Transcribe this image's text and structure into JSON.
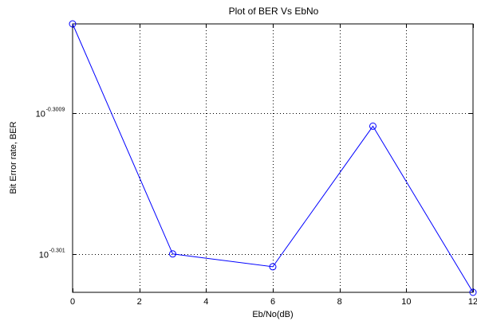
{
  "chart_data": {
    "type": "line",
    "title": "Plot of BER Vs EbNo",
    "xlabel": "Eb/No(dB)",
    "ylabel": "Bit Error rate, BER",
    "x": [
      0,
      3,
      6,
      9,
      12
    ],
    "series": [
      {
        "values": [
          0.50025,
          0.50007,
          0.50006,
          0.50017,
          0.50004
        ],
        "color": "#0000ff",
        "marker": "circle"
      }
    ],
    "xlim": [
      0,
      12
    ],
    "ylim": [
      0.50004,
      0.50025
    ],
    "y_scale": "log",
    "grid": true,
    "x_ticks": [
      {
        "value": 0,
        "label": "0"
      },
      {
        "value": 2,
        "label": "2"
      },
      {
        "value": 4,
        "label": "4"
      },
      {
        "value": 6,
        "label": "6"
      },
      {
        "value": 8,
        "label": "8"
      },
      {
        "value": 10,
        "label": "10"
      },
      {
        "value": 12,
        "label": "12"
      }
    ],
    "y_ticks": [
      {
        "value": 0.50018,
        "base": "10",
        "exponent": "-0.3009"
      },
      {
        "value": 0.50007,
        "base": "10",
        "exponent": "-0.301"
      }
    ],
    "colors": {
      "line": "#0000ff",
      "axes": "#000000",
      "grid": "#000000",
      "background": "#ffffff"
    }
  }
}
